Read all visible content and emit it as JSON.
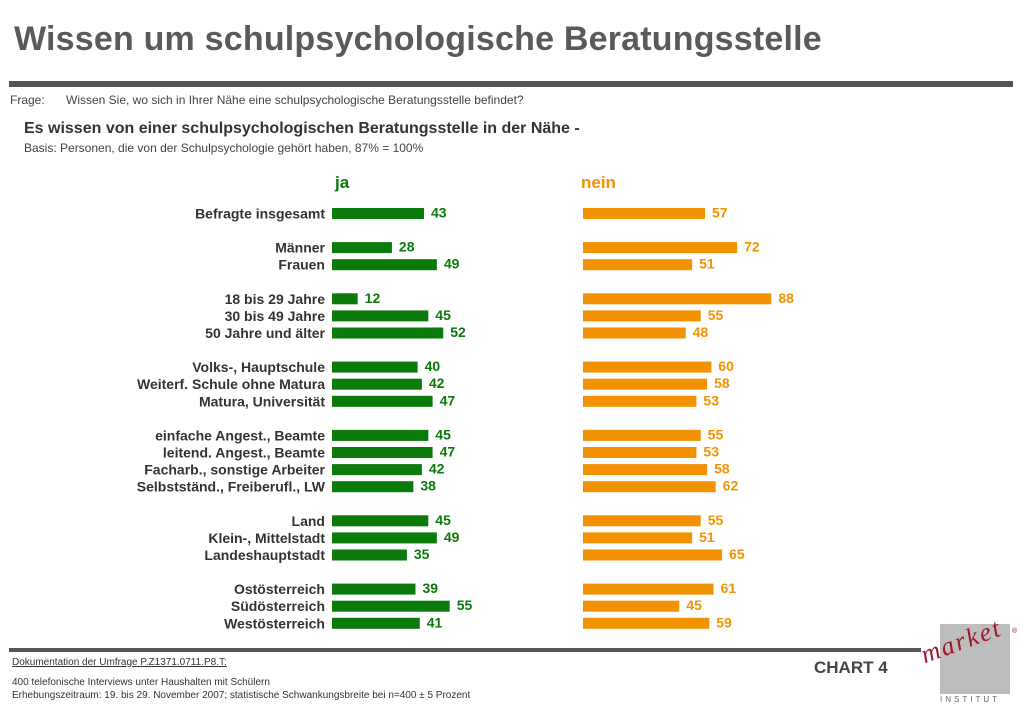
{
  "header": {
    "title": "Wissen um schulpsychologische Beratungsstelle",
    "question_label": "Frage:",
    "question_text": "Wissen Sie, wo sich in Ihrer Nähe eine schulpsychologische Beratungsstelle befindet?",
    "subtitle": "Es wissen von einer schulpsychologischen Beratungsstelle in der Nähe -",
    "basis": "Basis: Personen, die von der Schulpsychologie gehört haben, 87% = 100%"
  },
  "chart_data": {
    "type": "bar",
    "orientation": "horizontal",
    "categories": [
      "Befragte insgesamt",
      "Männer",
      "Frauen",
      "18 bis 29 Jahre",
      "30 bis 49 Jahre",
      "50 Jahre und älter",
      "Volks-, Hauptschule",
      "Weiterf. Schule ohne Matura",
      "Matura, Universität",
      "einfache Angest., Beamte",
      "leitend. Angest., Beamte",
      "Facharb., sonstige Arbeiter",
      "Selbstständ., Freiberufl., LW",
      "Land",
      "Klein-, Mittelstadt",
      "Landeshauptstadt",
      "Ostösterreich",
      "Südösterreich",
      "Westösterreich"
    ],
    "groups": [
      1,
      2,
      3,
      3,
      4,
      3,
      3
    ],
    "series": [
      {
        "name": "ja",
        "color": "#0a7a0a",
        "values": [
          43,
          28,
          49,
          12,
          45,
          52,
          40,
          42,
          47,
          45,
          47,
          42,
          38,
          45,
          49,
          35,
          39,
          55,
          41
        ]
      },
      {
        "name": "nein",
        "color": "#f39200",
        "values": [
          57,
          72,
          51,
          88,
          55,
          48,
          60,
          58,
          53,
          55,
          53,
          58,
          62,
          55,
          51,
          65,
          61,
          45,
          59
        ]
      }
    ]
  },
  "footer": {
    "doc_link": "Dokumentation der Umfrage P.Z1371.0711.P8.T:",
    "line1": "400 telefonische Interviews unter Haushalten mit Schülern",
    "line2": "Erhebungszeitraum: 19. bis 29. November 2007; statistische Schwankungsbreite bei n=400 ± 5 Prozent",
    "chart_number": "CHART 4"
  },
  "logo": {
    "word": "market",
    "sub": "INSTITUT",
    "reg": "®"
  }
}
